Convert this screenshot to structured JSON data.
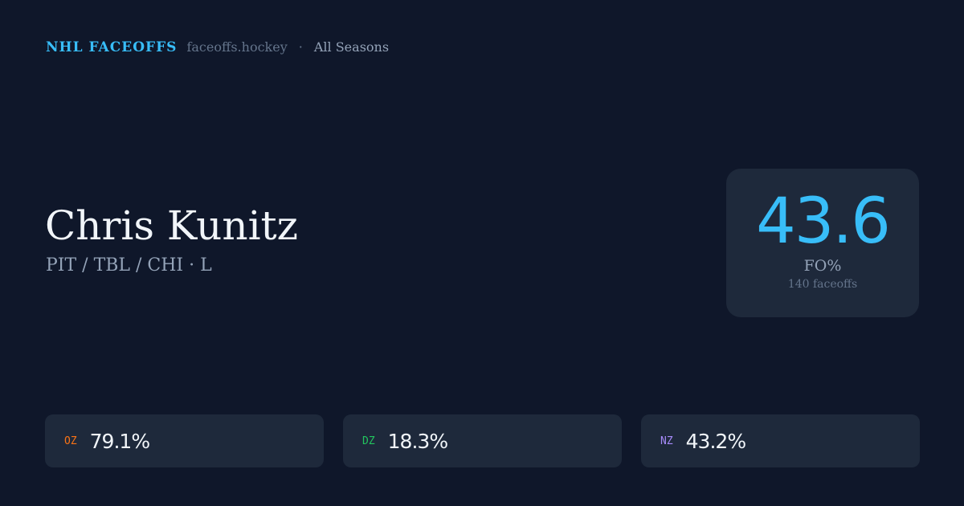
{
  "header": {
    "brand": "NHL FACEOFFS",
    "site": "faceoffs.hockey",
    "separator": "·",
    "season": "All Seasons"
  },
  "player": {
    "name": "Chris Kunitz",
    "teams": "PIT / TBL / CHI · L"
  },
  "summary": {
    "fo_pct": "43.6",
    "label": "FO%",
    "count": "140 faceoffs"
  },
  "zones": [
    {
      "label": "OZ",
      "value": "79.1%",
      "color": "#f97316"
    },
    {
      "label": "DZ",
      "value": "18.3%",
      "color": "#22c55e"
    },
    {
      "label": "NZ",
      "value": "43.2%",
      "color": "#a78bfa"
    }
  ]
}
